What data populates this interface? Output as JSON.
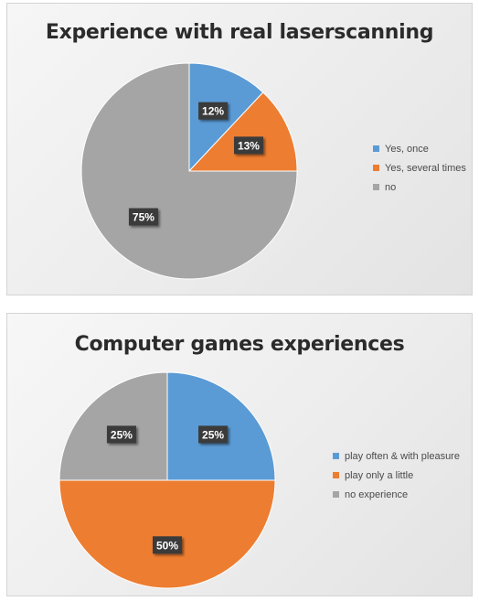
{
  "chart_data": [
    {
      "type": "pie",
      "title": "Experience with real laserscanning",
      "categories": [
        "Yes, once",
        "Yes, several times",
        "no"
      ],
      "values": [
        12,
        13,
        75
      ],
      "data_labels": [
        "12%",
        "13%",
        "75%"
      ],
      "colors": [
        "#5b9bd5",
        "#ed7d31",
        "#a5a5a5"
      ],
      "legend_position": "right"
    },
    {
      "type": "pie",
      "title": "Computer games experiences",
      "categories": [
        "play often & with pleasure",
        "play only a little",
        "no experience"
      ],
      "values": [
        25,
        50,
        25
      ],
      "data_labels": [
        "25%",
        "50%",
        "25%"
      ],
      "colors": [
        "#5b9bd5",
        "#ed7d31",
        "#a5a5a5"
      ],
      "legend_position": "right"
    }
  ]
}
